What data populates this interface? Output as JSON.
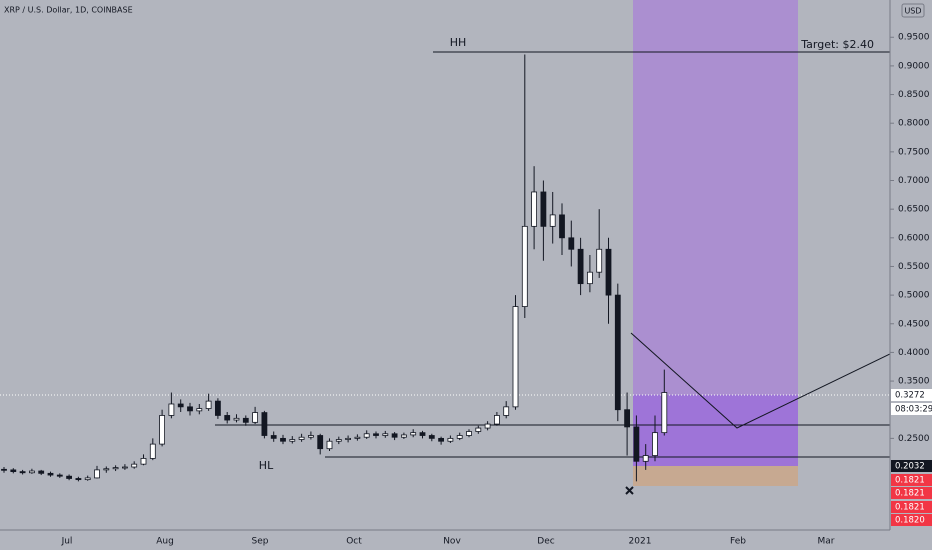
{
  "chart_data": {
    "type": "candlestick",
    "title": "XRP / U.S. Dollar, 1D, COINBASE",
    "currency": "USD",
    "candles": [
      [
        0.196,
        0.2,
        0.19,
        0.195
      ],
      [
        0.195,
        0.198,
        0.189,
        0.192
      ],
      [
        0.192,
        0.195,
        0.187,
        0.19
      ],
      [
        0.19,
        0.197,
        0.188,
        0.193
      ],
      [
        0.193,
        0.195,
        0.186,
        0.189
      ],
      [
        0.189,
        0.192,
        0.183,
        0.186
      ],
      [
        0.186,
        0.189,
        0.181,
        0.184
      ],
      [
        0.184,
        0.187,
        0.177,
        0.18
      ],
      [
        0.18,
        0.183,
        0.175,
        0.178
      ],
      [
        0.178,
        0.185,
        0.176,
        0.181
      ],
      [
        0.181,
        0.202,
        0.18,
        0.195
      ],
      [
        0.195,
        0.201,
        0.19,
        0.197
      ],
      [
        0.197,
        0.203,
        0.193,
        0.199
      ],
      [
        0.199,
        0.205,
        0.195,
        0.2
      ],
      [
        0.2,
        0.21,
        0.197,
        0.205
      ],
      [
        0.205,
        0.222,
        0.203,
        0.215
      ],
      [
        0.215,
        0.25,
        0.212,
        0.24
      ],
      [
        0.24,
        0.3,
        0.236,
        0.29
      ],
      [
        0.29,
        0.33,
        0.285,
        0.31
      ],
      [
        0.31,
        0.318,
        0.296,
        0.305
      ],
      [
        0.305,
        0.312,
        0.29,
        0.298
      ],
      [
        0.298,
        0.31,
        0.292,
        0.302
      ],
      [
        0.302,
        0.328,
        0.298,
        0.315
      ],
      [
        0.315,
        0.32,
        0.284,
        0.29
      ],
      [
        0.29,
        0.296,
        0.276,
        0.282
      ],
      [
        0.282,
        0.292,
        0.278,
        0.285
      ],
      [
        0.285,
        0.29,
        0.272,
        0.278
      ],
      [
        0.278,
        0.305,
        0.275,
        0.295
      ],
      [
        0.295,
        0.298,
        0.25,
        0.255
      ],
      [
        0.255,
        0.262,
        0.244,
        0.25
      ],
      [
        0.25,
        0.256,
        0.24,
        0.245
      ],
      [
        0.245,
        0.254,
        0.241,
        0.248
      ],
      [
        0.248,
        0.258,
        0.244,
        0.252
      ],
      [
        0.252,
        0.262,
        0.248,
        0.255
      ],
      [
        0.255,
        0.258,
        0.222,
        0.232
      ],
      [
        0.232,
        0.25,
        0.228,
        0.245
      ],
      [
        0.245,
        0.253,
        0.24,
        0.248
      ],
      [
        0.248,
        0.255,
        0.243,
        0.25
      ],
      [
        0.25,
        0.257,
        0.246,
        0.252
      ],
      [
        0.252,
        0.264,
        0.249,
        0.258
      ],
      [
        0.258,
        0.262,
        0.25,
        0.255
      ],
      [
        0.255,
        0.263,
        0.251,
        0.258
      ],
      [
        0.258,
        0.261,
        0.247,
        0.252
      ],
      [
        0.252,
        0.26,
        0.249,
        0.256
      ],
      [
        0.256,
        0.266,
        0.252,
        0.26
      ],
      [
        0.26,
        0.263,
        0.25,
        0.255
      ],
      [
        0.255,
        0.258,
        0.245,
        0.25
      ],
      [
        0.25,
        0.253,
        0.239,
        0.245
      ],
      [
        0.245,
        0.255,
        0.242,
        0.25
      ],
      [
        0.25,
        0.26,
        0.247,
        0.255
      ],
      [
        0.255,
        0.266,
        0.252,
        0.262
      ],
      [
        0.262,
        0.272,
        0.258,
        0.268
      ],
      [
        0.268,
        0.28,
        0.264,
        0.275
      ],
      [
        0.275,
        0.296,
        0.272,
        0.29
      ],
      [
        0.29,
        0.315,
        0.285,
        0.305
      ],
      [
        0.305,
        0.5,
        0.3,
        0.48
      ],
      [
        0.48,
        0.92,
        0.46,
        0.62
      ],
      [
        0.62,
        0.725,
        0.58,
        0.68
      ],
      [
        0.68,
        0.7,
        0.56,
        0.62
      ],
      [
        0.62,
        0.68,
        0.59,
        0.64
      ],
      [
        0.64,
        0.66,
        0.57,
        0.6
      ],
      [
        0.6,
        0.63,
        0.55,
        0.58
      ],
      [
        0.58,
        0.6,
        0.5,
        0.52
      ],
      [
        0.52,
        0.57,
        0.505,
        0.54
      ],
      [
        0.54,
        0.65,
        0.53,
        0.58
      ],
      [
        0.58,
        0.6,
        0.45,
        0.5
      ],
      [
        0.5,
        0.52,
        0.28,
        0.3
      ],
      [
        0.3,
        0.33,
        0.22,
        0.27
      ],
      [
        0.27,
        0.29,
        0.175,
        0.21
      ],
      [
        0.21,
        0.24,
        0.195,
        0.22
      ],
      [
        0.22,
        0.29,
        0.21,
        0.26
      ],
      [
        0.26,
        0.37,
        0.255,
        0.33
      ]
    ],
    "ylim": [
      0.0901,
      1.015
    ],
    "yticks": [
      {
        "value": 0.95,
        "label": "0.9500"
      },
      {
        "value": 0.9,
        "label": "0.9000"
      },
      {
        "value": 0.85,
        "label": "0.8500"
      },
      {
        "value": 0.8,
        "label": "0.8000"
      },
      {
        "value": 0.75,
        "label": "0.7500"
      },
      {
        "value": 0.7,
        "label": "0.7000"
      },
      {
        "value": 0.65,
        "label": "0.6500"
      },
      {
        "value": 0.6,
        "label": "0.6000"
      },
      {
        "value": 0.55,
        "label": "0.5500"
      },
      {
        "value": 0.5,
        "label": "0.5000"
      },
      {
        "value": 0.45,
        "label": "0.4500"
      },
      {
        "value": 0.4,
        "label": "0.4000"
      },
      {
        "value": 0.35,
        "label": "0.3500"
      },
      {
        "value": 0.25,
        "label": "0.2500"
      }
    ],
    "months": [
      "Jul",
      "Aug",
      "Sep",
      "Oct",
      "Nov",
      "Dec",
      "2021",
      "Feb",
      "Mar"
    ],
    "annotations": {
      "hh": "HH",
      "hl": "HL",
      "target": "Target: $2.40"
    },
    "price_labels": [
      {
        "label": "0.3272",
        "color": "#ffffff"
      },
      {
        "label": "08:03:29",
        "color": "#ffffff"
      },
      {
        "label": "0.2032",
        "color": "#131722"
      },
      {
        "label": "0.1821",
        "color": "#f23645"
      },
      {
        "label": "0.1821",
        "color": "#f23645"
      },
      {
        "label": "0.1821",
        "color": "#f23645"
      },
      {
        "label": "0.1820",
        "color": "#f23645"
      }
    ]
  }
}
